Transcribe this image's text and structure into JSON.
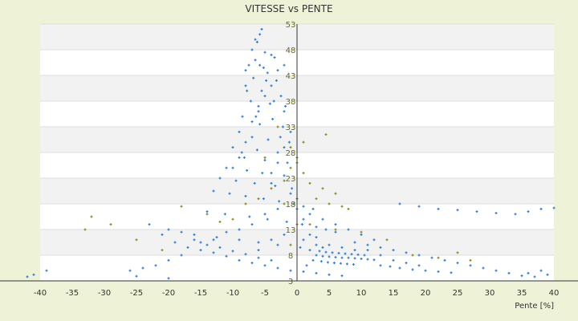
{
  "chart_data": {
    "type": "scatter",
    "title": "VITESSE vs PENTE",
    "xlabel": "Pente [%]",
    "ylabel": "",
    "xlim": [
      -40,
      40
    ],
    "ylim": [
      3,
      53
    ],
    "x_ticks": [
      "-40",
      "-35",
      "-30",
      "-25",
      "-20",
      "-15",
      "-10",
      "-5",
      "0",
      "5",
      "10",
      "15",
      "20",
      "25",
      "30",
      "35",
      "40"
    ],
    "y_ticks": [
      "3",
      "8",
      "13",
      "18",
      "23",
      "28",
      "33",
      "38",
      "43",
      "48",
      "53"
    ],
    "grid": true,
    "legend": "none",
    "colors": {
      "plot_bg": "#ffffff",
      "band": "#f2f2f2",
      "page_bg": "#eef2d6",
      "series_a": "#2e7fd6",
      "series_b": "#8a8a1e",
      "axis": "#333333"
    },
    "series": [
      {
        "color": "#2e7fd6",
        "points": [
          [
            -5.5,
            52
          ],
          [
            -5.8,
            51
          ],
          [
            -6.2,
            49.5
          ],
          [
            -7,
            48
          ],
          [
            -5,
            47.5
          ],
          [
            -4,
            47
          ],
          [
            -3.5,
            46.5
          ],
          [
            -6.5,
            46
          ],
          [
            -7.5,
            45
          ],
          [
            -5.2,
            44.5
          ],
          [
            -4.6,
            43.5
          ],
          [
            -6.8,
            42.5
          ],
          [
            -3.2,
            42
          ],
          [
            -8,
            41
          ],
          [
            -5.5,
            40
          ],
          [
            -2.5,
            39
          ],
          [
            -7.2,
            38
          ],
          [
            -4.2,
            37.5
          ],
          [
            -1.8,
            37
          ],
          [
            -6,
            36
          ],
          [
            -8.5,
            35
          ],
          [
            -3.8,
            34.5
          ],
          [
            -5.8,
            33.5
          ],
          [
            -2.2,
            33
          ],
          [
            -9,
            32
          ],
          [
            -7,
            31
          ],
          [
            -4.5,
            30.5
          ],
          [
            -1.2,
            30
          ],
          [
            -10,
            29
          ],
          [
            -6.2,
            28.5
          ],
          [
            -3,
            28
          ],
          [
            -8.2,
            27
          ],
          [
            -5,
            26.5
          ],
          [
            -1.5,
            26
          ],
          [
            -11,
            25
          ],
          [
            -7.8,
            24.5
          ],
          [
            -4,
            24
          ],
          [
            -2,
            23.5
          ],
          [
            -12,
            23
          ],
          [
            -9.5,
            22.5
          ],
          [
            -6.6,
            22
          ],
          [
            -3.4,
            21.5
          ],
          [
            -0.8,
            21
          ],
          [
            -13,
            20.5
          ],
          [
            -10.5,
            20
          ],
          [
            -8,
            19.5
          ],
          [
            -5.2,
            19
          ],
          [
            -2.8,
            18.5
          ],
          [
            -0.5,
            18
          ],
          [
            1,
            17.5
          ],
          [
            2.5,
            17
          ],
          [
            -14,
            16.5
          ],
          [
            -11.2,
            16
          ],
          [
            -7.4,
            15.5
          ],
          [
            -4.6,
            15
          ],
          [
            -1.6,
            14.5
          ],
          [
            0.8,
            14
          ],
          [
            3,
            13.5
          ],
          [
            4.5,
            13
          ],
          [
            6,
            12.5
          ],
          [
            -16,
            12
          ],
          [
            -12.5,
            11.5
          ],
          [
            -9,
            11
          ],
          [
            -6,
            10.5
          ],
          [
            -3,
            10
          ],
          [
            0.5,
            9.5
          ],
          [
            2,
            9
          ],
          [
            3.5,
            8.8
          ],
          [
            4.5,
            8.6
          ],
          [
            5.5,
            8.5
          ],
          [
            6.5,
            8.4
          ],
          [
            7.5,
            8.3
          ],
          [
            8.5,
            8.2
          ],
          [
            9.5,
            8.1
          ],
          [
            10.5,
            8
          ],
          [
            3,
            8
          ],
          [
            4,
            7.8
          ],
          [
            5,
            7.7
          ],
          [
            6,
            7.6
          ],
          [
            7,
            7.5
          ],
          [
            8,
            7.5
          ],
          [
            9,
            7.4
          ],
          [
            10,
            7.3
          ],
          [
            11,
            7.2
          ],
          [
            12,
            7.1
          ],
          [
            2.5,
            7
          ],
          [
            3.8,
            6.8
          ],
          [
            4.8,
            6.6
          ],
          [
            5.8,
            6.5
          ],
          [
            6.8,
            6.4
          ],
          [
            7.8,
            6.3
          ],
          [
            8.8,
            6.2
          ],
          [
            1.5,
            6
          ],
          [
            13,
            6
          ],
          [
            14.5,
            5.8
          ],
          [
            16,
            5.5
          ],
          [
            18,
            5.2
          ],
          [
            20,
            5
          ],
          [
            22,
            4.8
          ],
          [
            24,
            4.6
          ],
          [
            -18,
            8
          ],
          [
            -20,
            7
          ],
          [
            -22,
            6
          ],
          [
            -24,
            5.5
          ],
          [
            -26,
            5
          ],
          [
            -21,
            12
          ],
          [
            -19,
            10.5
          ],
          [
            -17,
            9.5
          ],
          [
            -15,
            9
          ],
          [
            -13,
            8.5
          ],
          [
            -11,
            7.8
          ],
          [
            -9,
            7
          ],
          [
            -7,
            6.5
          ],
          [
            -5,
            6
          ],
          [
            -3,
            5.5
          ],
          [
            -1,
            5
          ],
          [
            1,
            4.8
          ],
          [
            3,
            4.5
          ],
          [
            5,
            4.2
          ],
          [
            7,
            4
          ],
          [
            -23,
            14
          ],
          [
            -20,
            13
          ],
          [
            -18,
            12.5
          ],
          [
            -16,
            11
          ],
          [
            -14,
            10
          ],
          [
            -12,
            9.5
          ],
          [
            -10,
            8.8
          ],
          [
            -8,
            8.2
          ],
          [
            -6,
            7.5
          ],
          [
            -4,
            7
          ],
          [
            15,
            9
          ],
          [
            17,
            8.5
          ],
          [
            19,
            8
          ],
          [
            21,
            7.5
          ],
          [
            23,
            7
          ],
          [
            25,
            6.5
          ],
          [
            27,
            6
          ],
          [
            29,
            5.5
          ],
          [
            31,
            5
          ],
          [
            33,
            4.5
          ],
          [
            16,
            18
          ],
          [
            19,
            17.5
          ],
          [
            22,
            17
          ],
          [
            25,
            16.8
          ],
          [
            28,
            16.5
          ],
          [
            31,
            16.2
          ],
          [
            34,
            16
          ],
          [
            36,
            16.5
          ],
          [
            38,
            17
          ],
          [
            40,
            17.2
          ],
          [
            35,
            4
          ],
          [
            37,
            3.8
          ],
          [
            39,
            4.2
          ],
          [
            38,
            5
          ],
          [
            36,
            4.5
          ],
          [
            -41,
            4.2
          ],
          [
            -42,
            3.8
          ],
          [
            -39,
            5
          ],
          [
            -25,
            3.9
          ],
          [
            -20,
            3.5
          ],
          [
            -2,
            45
          ],
          [
            -3,
            44
          ],
          [
            -4,
            41
          ],
          [
            -5,
            39
          ],
          [
            -6,
            37
          ],
          [
            -7,
            34
          ],
          [
            -8,
            30
          ],
          [
            -9,
            27
          ],
          [
            -10,
            25
          ],
          [
            -2,
            36
          ],
          [
            -1,
            32
          ],
          [
            -2,
            29
          ],
          [
            -3,
            26
          ],
          [
            -4,
            22
          ],
          [
            -1,
            20
          ],
          [
            0,
            17
          ],
          [
            1,
            15
          ],
          [
            2,
            12
          ],
          [
            3,
            10
          ],
          [
            4,
            9.5
          ],
          [
            9,
            9
          ],
          [
            11,
            10
          ],
          [
            13,
            9.5
          ],
          [
            12,
            11
          ],
          [
            10,
            12
          ],
          [
            8,
            13
          ],
          [
            6,
            14
          ],
          [
            4,
            15
          ],
          [
            2,
            16
          ],
          [
            0,
            19
          ],
          [
            -3,
            17
          ],
          [
            -5,
            16
          ],
          [
            -7,
            14
          ],
          [
            -9,
            13
          ],
          [
            -11,
            12.5
          ],
          [
            -13,
            11
          ],
          [
            -15,
            10.5
          ],
          [
            -2,
            12
          ],
          [
            -4,
            11
          ],
          [
            -6,
            9
          ],
          [
            1,
            11
          ],
          [
            3,
            11.5
          ],
          [
            5,
            10
          ],
          [
            7,
            9.5
          ],
          [
            9,
            10.5
          ],
          [
            11,
            9
          ],
          [
            13,
            8
          ],
          [
            15,
            7
          ],
          [
            17,
            6.5
          ],
          [
            19,
            6
          ],
          [
            -8,
            44
          ],
          [
            -6.5,
            50
          ],
          [
            -5.8,
            45
          ],
          [
            -4.8,
            42
          ],
          [
            -7.8,
            40
          ],
          [
            -3.6,
            38
          ],
          [
            -6.4,
            35
          ],
          [
            -2.6,
            31
          ],
          [
            -8.6,
            28
          ],
          [
            -5.4,
            24
          ]
        ]
      },
      {
        "color": "#8a8a1e",
        "points": [
          [
            -33,
            13
          ],
          [
            -32,
            15.5
          ],
          [
            -29,
            14
          ],
          [
            -25,
            11
          ],
          [
            -21,
            9
          ],
          [
            -18,
            17.5
          ],
          [
            -14,
            16
          ],
          [
            -12,
            14.5
          ],
          [
            -10,
            15
          ],
          [
            -8,
            18
          ],
          [
            -6,
            19
          ],
          [
            -4,
            21
          ],
          [
            -2,
            22.5
          ],
          [
            -1,
            25
          ],
          [
            0,
            27
          ],
          [
            1,
            30
          ],
          [
            2,
            22
          ],
          [
            4,
            21
          ],
          [
            6,
            20
          ],
          [
            8,
            17
          ],
          [
            4.5,
            31.5
          ],
          [
            3,
            19
          ],
          [
            5,
            18
          ],
          [
            7,
            17.5
          ],
          [
            2,
            14
          ],
          [
            6,
            13
          ],
          [
            10,
            12.5
          ],
          [
            14,
            11
          ],
          [
            18,
            8
          ],
          [
            22,
            7.5
          ],
          [
            25,
            8.5
          ],
          [
            27,
            7
          ],
          [
            -3,
            33
          ],
          [
            -1,
            29
          ],
          [
            0,
            26
          ],
          [
            1,
            24
          ],
          [
            -5,
            27
          ],
          [
            -2,
            18
          ],
          [
            0,
            14
          ],
          [
            -1,
            10
          ]
        ]
      }
    ]
  }
}
